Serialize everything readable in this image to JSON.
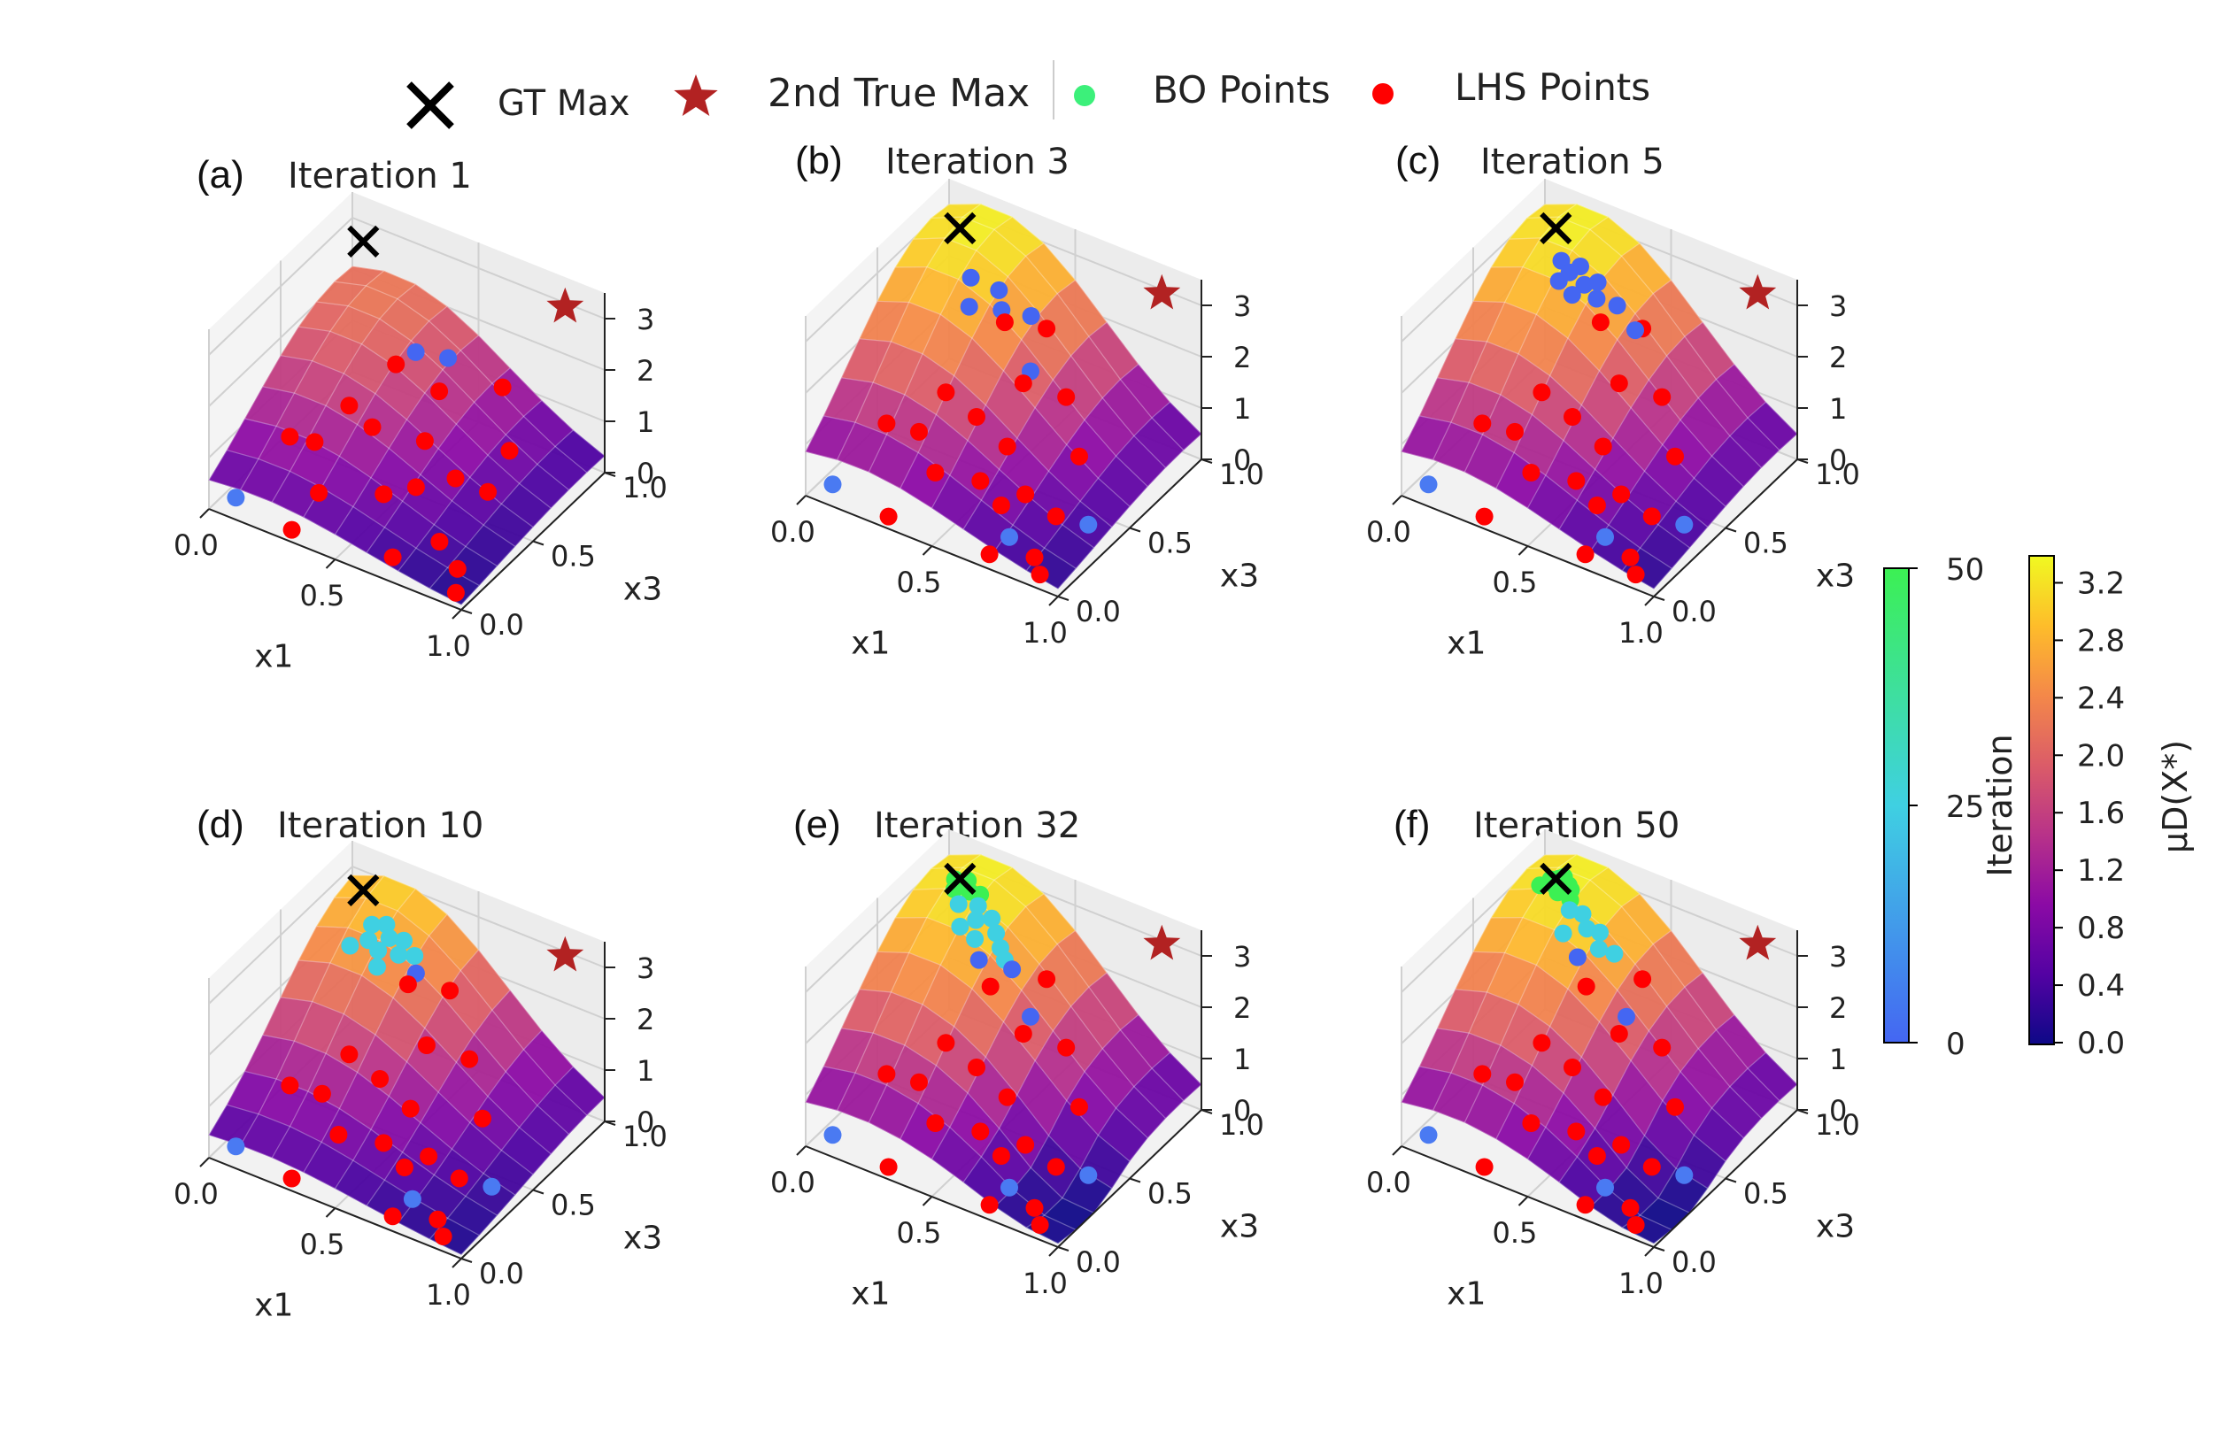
{
  "legend": {
    "items": [
      {
        "label": "GT Max",
        "marker": "x",
        "color": "#000000"
      },
      {
        "label": "2nd True Max",
        "marker": "star",
        "color": "#b22222"
      },
      {
        "label": "BO Points",
        "marker": "circle",
        "color": "#3cf07a"
      },
      {
        "label": "LHS Points",
        "marker": "circle",
        "color": "#ff0000"
      }
    ]
  },
  "colorbars": {
    "iteration": {
      "label": "Iteration",
      "ticks": [
        "0",
        "25",
        "50"
      ],
      "colors": [
        "#4466f2",
        "#3fd0e2",
        "#3cf053"
      ]
    },
    "mu": {
      "label": "μD(X*)",
      "ticks": [
        "0.0",
        "0.4",
        "0.8",
        "1.2",
        "1.6",
        "2.0",
        "2.4",
        "2.8",
        "3.2"
      ],
      "colors": [
        "#0d0887",
        "#5302a3",
        "#8b0aa5",
        "#b83289",
        "#db5c68",
        "#f48849",
        "#febd2a",
        "#f0f921"
      ]
    }
  },
  "axis_labels": {
    "x": "x1",
    "y": "x3"
  },
  "tick_labels": {
    "x": [
      "0.0",
      "0.5",
      "1.0"
    ],
    "y": [
      "0.0",
      "0.5",
      "1.0"
    ],
    "z": [
      "0",
      "1",
      "2",
      "3"
    ]
  },
  "chart_data": [
    {
      "type": "scatter",
      "panel": "(a)",
      "title": "Iteration 1",
      "surface_peak": 2.1,
      "xlabel": "x1",
      "ylabel": "x3",
      "zlim": [
        0,
        3.4
      ],
      "gt_max": [
        0.1,
        0.9,
        3.0
      ],
      "second_max": [
        0.9,
        0.9,
        3.3
      ],
      "bo_points": [
        [
          0.45,
          0.65,
          2.2
        ],
        [
          0.55,
          0.7,
          2.15
        ],
        [
          0.05,
          0.1,
          0.05
        ]
      ],
      "lhs_points": [
        [
          0.4,
          0.6,
          2.0
        ],
        [
          0.6,
          0.55,
          2.0
        ],
        [
          0.72,
          0.78,
          1.7
        ],
        [
          0.3,
          0.45,
          1.4
        ],
        [
          0.42,
          0.4,
          1.35
        ],
        [
          0.6,
          0.45,
          1.3
        ],
        [
          0.75,
          0.4,
          1.0
        ],
        [
          0.15,
          0.3,
          0.9
        ],
        [
          0.22,
          0.35,
          0.8
        ],
        [
          0.35,
          0.15,
          0.6
        ],
        [
          0.55,
          0.25,
          0.7
        ],
        [
          0.65,
          0.3,
          0.9
        ],
        [
          0.85,
          0.45,
          0.8
        ],
        [
          0.8,
          0.2,
          0.4
        ],
        [
          0.3,
          0.05,
          0.05
        ],
        [
          0.7,
          0.05,
          0.3
        ],
        [
          0.9,
          0.15,
          0.2
        ],
        [
          0.95,
          0.05,
          0.1
        ],
        [
          0.85,
          0.6,
          1.2
        ]
      ]
    },
    {
      "type": "scatter",
      "panel": "(b)",
      "title": "Iteration 3",
      "surface_peak": 3.2,
      "xlabel": "x1",
      "ylabel": "x3",
      "zlim": [
        0,
        3.4
      ],
      "gt_max": [
        0.1,
        0.9,
        3.0
      ],
      "second_max": [
        0.9,
        0.9,
        3.3
      ],
      "bo_points": [
        [
          0.2,
          0.8,
          2.5
        ],
        [
          0.3,
          0.82,
          2.4
        ],
        [
          0.35,
          0.75,
          2.3
        ],
        [
          0.45,
          0.78,
          2.3
        ],
        [
          0.25,
          0.7,
          2.3
        ],
        [
          0.55,
          0.6,
          1.9
        ],
        [
          0.05,
          0.1,
          0.05
        ],
        [
          0.75,
          0.1,
          0.4
        ],
        [
          0.95,
          0.3,
          0.5
        ]
      ],
      "lhs_points": [
        [
          0.38,
          0.72,
          2.2
        ],
        [
          0.5,
          0.8,
          2.1
        ],
        [
          0.55,
          0.55,
          1.8
        ],
        [
          0.68,
          0.62,
          1.6
        ],
        [
          0.3,
          0.45,
          1.4
        ],
        [
          0.45,
          0.4,
          1.35
        ],
        [
          0.6,
          0.35,
          1.2
        ],
        [
          0.8,
          0.5,
          1.0
        ],
        [
          0.15,
          0.3,
          0.9
        ],
        [
          0.25,
          0.35,
          0.8
        ],
        [
          0.4,
          0.2,
          0.7
        ],
        [
          0.55,
          0.25,
          0.7
        ],
        [
          0.7,
          0.3,
          0.6
        ],
        [
          0.85,
          0.25,
          0.6
        ],
        [
          0.3,
          0.05,
          0.05
        ],
        [
          0.7,
          0.05,
          0.1
        ],
        [
          0.85,
          0.1,
          0.2
        ],
        [
          0.9,
          0.05,
          0.1
        ],
        [
          0.65,
          0.22,
          0.5
        ]
      ]
    },
    {
      "type": "scatter",
      "panel": "(c)",
      "title": "Iteration 5",
      "surface_peak": 3.2,
      "xlabel": "x1",
      "ylabel": "x3",
      "zlim": [
        0,
        3.4
      ],
      "gt_max": [
        0.1,
        0.9,
        3.0
      ],
      "second_max": [
        0.9,
        0.9,
        3.3
      ],
      "bo_points": [
        [
          0.15,
          0.85,
          2.6
        ],
        [
          0.2,
          0.82,
          2.55
        ],
        [
          0.22,
          0.86,
          2.6
        ],
        [
          0.27,
          0.8,
          2.5
        ],
        [
          0.3,
          0.84,
          2.5
        ],
        [
          0.33,
          0.78,
          2.4
        ],
        [
          0.18,
          0.78,
          2.45
        ],
        [
          0.25,
          0.75,
          2.4
        ],
        [
          0.4,
          0.8,
          2.35
        ],
        [
          0.5,
          0.75,
          2.2
        ],
        [
          0.05,
          0.1,
          0.05
        ],
        [
          0.75,
          0.1,
          0.4
        ],
        [
          0.95,
          0.3,
          0.5
        ]
      ],
      "lhs_points": [
        [
          0.38,
          0.72,
          2.2
        ],
        [
          0.5,
          0.8,
          2.1
        ],
        [
          0.55,
          0.55,
          1.8
        ],
        [
          0.68,
          0.62,
          1.6
        ],
        [
          0.3,
          0.45,
          1.4
        ],
        [
          0.45,
          0.4,
          1.35
        ],
        [
          0.6,
          0.35,
          1.2
        ],
        [
          0.8,
          0.5,
          1.0
        ],
        [
          0.15,
          0.3,
          0.9
        ],
        [
          0.25,
          0.35,
          0.8
        ],
        [
          0.4,
          0.2,
          0.7
        ],
        [
          0.55,
          0.25,
          0.7
        ],
        [
          0.7,
          0.3,
          0.6
        ],
        [
          0.85,
          0.25,
          0.6
        ],
        [
          0.3,
          0.05,
          0.05
        ],
        [
          0.7,
          0.05,
          0.1
        ],
        [
          0.85,
          0.1,
          0.2
        ],
        [
          0.9,
          0.05,
          0.1
        ],
        [
          0.65,
          0.22,
          0.5
        ]
      ]
    },
    {
      "type": "scatter",
      "panel": "(d)",
      "title": "Iteration 10",
      "surface_peak": 3.0,
      "xlabel": "x1",
      "ylabel": "x3",
      "zlim": [
        0,
        3.4
      ],
      "gt_max": [
        0.1,
        0.9,
        3.0
      ],
      "second_max": [
        0.9,
        0.9,
        3.3
      ],
      "bo_points": [
        [
          0.18,
          0.82,
          2.7
        ],
        [
          0.22,
          0.85,
          2.7
        ],
        [
          0.26,
          0.8,
          2.65
        ],
        [
          0.3,
          0.83,
          2.6
        ],
        [
          0.2,
          0.76,
          2.6
        ],
        [
          0.25,
          0.74,
          2.55
        ],
        [
          0.32,
          0.76,
          2.55
        ],
        [
          0.36,
          0.8,
          2.5
        ],
        [
          0.15,
          0.72,
          2.5
        ],
        [
          0.28,
          0.68,
          2.45
        ],
        [
          0.4,
          0.74,
          2.4
        ],
        [
          0.05,
          0.1,
          0.05
        ],
        [
          0.75,
          0.1,
          0.4
        ],
        [
          0.95,
          0.3,
          0.5
        ]
      ],
      "lhs_points": [
        [
          0.38,
          0.72,
          2.2
        ],
        [
          0.5,
          0.8,
          2.1
        ],
        [
          0.55,
          0.55,
          1.8
        ],
        [
          0.68,
          0.62,
          1.6
        ],
        [
          0.3,
          0.45,
          1.4
        ],
        [
          0.45,
          0.4,
          1.35
        ],
        [
          0.6,
          0.35,
          1.2
        ],
        [
          0.8,
          0.5,
          1.0
        ],
        [
          0.15,
          0.3,
          0.9
        ],
        [
          0.25,
          0.35,
          0.8
        ],
        [
          0.4,
          0.2,
          0.7
        ],
        [
          0.55,
          0.25,
          0.7
        ],
        [
          0.7,
          0.3,
          0.6
        ],
        [
          0.85,
          0.25,
          0.6
        ],
        [
          0.3,
          0.05,
          0.05
        ],
        [
          0.7,
          0.05,
          0.1
        ],
        [
          0.85,
          0.1,
          0.2
        ],
        [
          0.9,
          0.05,
          0.1
        ],
        [
          0.65,
          0.22,
          0.5
        ]
      ]
    },
    {
      "type": "scatter",
      "panel": "(e)",
      "title": "Iteration 32",
      "surface_peak": 3.2,
      "xlabel": "x1",
      "ylabel": "x3",
      "zlim": [
        0,
        3.4
      ],
      "gt_max": [
        0.1,
        0.9,
        3.0
      ],
      "second_max": [
        0.9,
        0.9,
        3.3
      ],
      "bo_points": [
        [
          0.08,
          0.9,
          2.95
        ],
        [
          0.12,
          0.92,
          2.95
        ],
        [
          0.15,
          0.88,
          2.9
        ],
        [
          0.1,
          0.86,
          2.9
        ],
        [
          0.18,
          0.9,
          2.85
        ],
        [
          0.2,
          0.85,
          2.8
        ],
        [
          0.14,
          0.82,
          2.8
        ],
        [
          0.22,
          0.8,
          2.7
        ],
        [
          0.26,
          0.84,
          2.7
        ],
        [
          0.3,
          0.8,
          2.6
        ],
        [
          0.18,
          0.76,
          2.6
        ],
        [
          0.25,
          0.74,
          2.55
        ],
        [
          0.34,
          0.76,
          2.5
        ],
        [
          0.38,
          0.72,
          2.45
        ],
        [
          0.3,
          0.68,
          2.4
        ],
        [
          0.42,
          0.7,
          2.4
        ],
        [
          0.05,
          0.1,
          0.05
        ],
        [
          0.75,
          0.1,
          0.4
        ],
        [
          0.95,
          0.3,
          0.5
        ],
        [
          0.55,
          0.6,
          2.0
        ]
      ],
      "lhs_points": [
        [
          0.38,
          0.62,
          2.2
        ],
        [
          0.5,
          0.8,
          2.1
        ],
        [
          0.55,
          0.55,
          1.8
        ],
        [
          0.68,
          0.62,
          1.6
        ],
        [
          0.3,
          0.45,
          1.4
        ],
        [
          0.45,
          0.4,
          1.35
        ],
        [
          0.6,
          0.35,
          1.2
        ],
        [
          0.8,
          0.5,
          1.0
        ],
        [
          0.15,
          0.3,
          0.9
        ],
        [
          0.25,
          0.35,
          0.8
        ],
        [
          0.4,
          0.2,
          0.7
        ],
        [
          0.55,
          0.25,
          0.7
        ],
        [
          0.7,
          0.3,
          0.6
        ],
        [
          0.85,
          0.25,
          0.6
        ],
        [
          0.3,
          0.05,
          0.05
        ],
        [
          0.7,
          0.05,
          0.1
        ],
        [
          0.85,
          0.1,
          0.2
        ],
        [
          0.9,
          0.05,
          0.1
        ],
        [
          0.65,
          0.22,
          0.5
        ]
      ]
    },
    {
      "type": "scatter",
      "panel": "(f)",
      "title": "Iteration 50",
      "surface_peak": 3.2,
      "xlabel": "x1",
      "ylabel": "x3",
      "zlim": [
        0,
        3.4
      ],
      "gt_max": [
        0.1,
        0.9,
        3.0
      ],
      "second_max": [
        0.9,
        0.9,
        3.3
      ],
      "bo_points": [
        [
          0.08,
          0.9,
          2.95
        ],
        [
          0.1,
          0.92,
          2.95
        ],
        [
          0.12,
          0.9,
          2.95
        ],
        [
          0.09,
          0.88,
          2.95
        ],
        [
          0.14,
          0.92,
          2.9
        ],
        [
          0.06,
          0.86,
          2.9
        ],
        [
          0.13,
          0.86,
          2.9
        ],
        [
          0.16,
          0.9,
          2.9
        ],
        [
          0.11,
          0.94,
          2.95
        ],
        [
          0.18,
          0.86,
          2.85
        ],
        [
          0.2,
          0.82,
          2.8
        ],
        [
          0.24,
          0.84,
          2.75
        ],
        [
          0.28,
          0.8,
          2.65
        ],
        [
          0.32,
          0.82,
          2.6
        ],
        [
          0.35,
          0.76,
          2.5
        ],
        [
          0.4,
          0.78,
          2.45
        ],
        [
          0.3,
          0.7,
          2.4
        ],
        [
          0.22,
          0.74,
          2.6
        ],
        [
          0.05,
          0.1,
          0.05
        ],
        [
          0.75,
          0.1,
          0.4
        ],
        [
          0.95,
          0.3,
          0.5
        ],
        [
          0.55,
          0.6,
          2.0
        ]
      ],
      "lhs_points": [
        [
          0.38,
          0.62,
          2.2
        ],
        [
          0.5,
          0.8,
          2.1
        ],
        [
          0.55,
          0.55,
          1.8
        ],
        [
          0.68,
          0.62,
          1.6
        ],
        [
          0.3,
          0.45,
          1.4
        ],
        [
          0.45,
          0.4,
          1.35
        ],
        [
          0.6,
          0.35,
          1.2
        ],
        [
          0.8,
          0.5,
          1.0
        ],
        [
          0.15,
          0.3,
          0.9
        ],
        [
          0.25,
          0.35,
          0.8
        ],
        [
          0.4,
          0.2,
          0.7
        ],
        [
          0.55,
          0.25,
          0.7
        ],
        [
          0.7,
          0.3,
          0.6
        ],
        [
          0.85,
          0.25,
          0.6
        ],
        [
          0.3,
          0.05,
          0.05
        ],
        [
          0.7,
          0.05,
          0.1
        ],
        [
          0.85,
          0.1,
          0.2
        ],
        [
          0.9,
          0.05,
          0.1
        ],
        [
          0.65,
          0.22,
          0.5
        ]
      ]
    }
  ]
}
